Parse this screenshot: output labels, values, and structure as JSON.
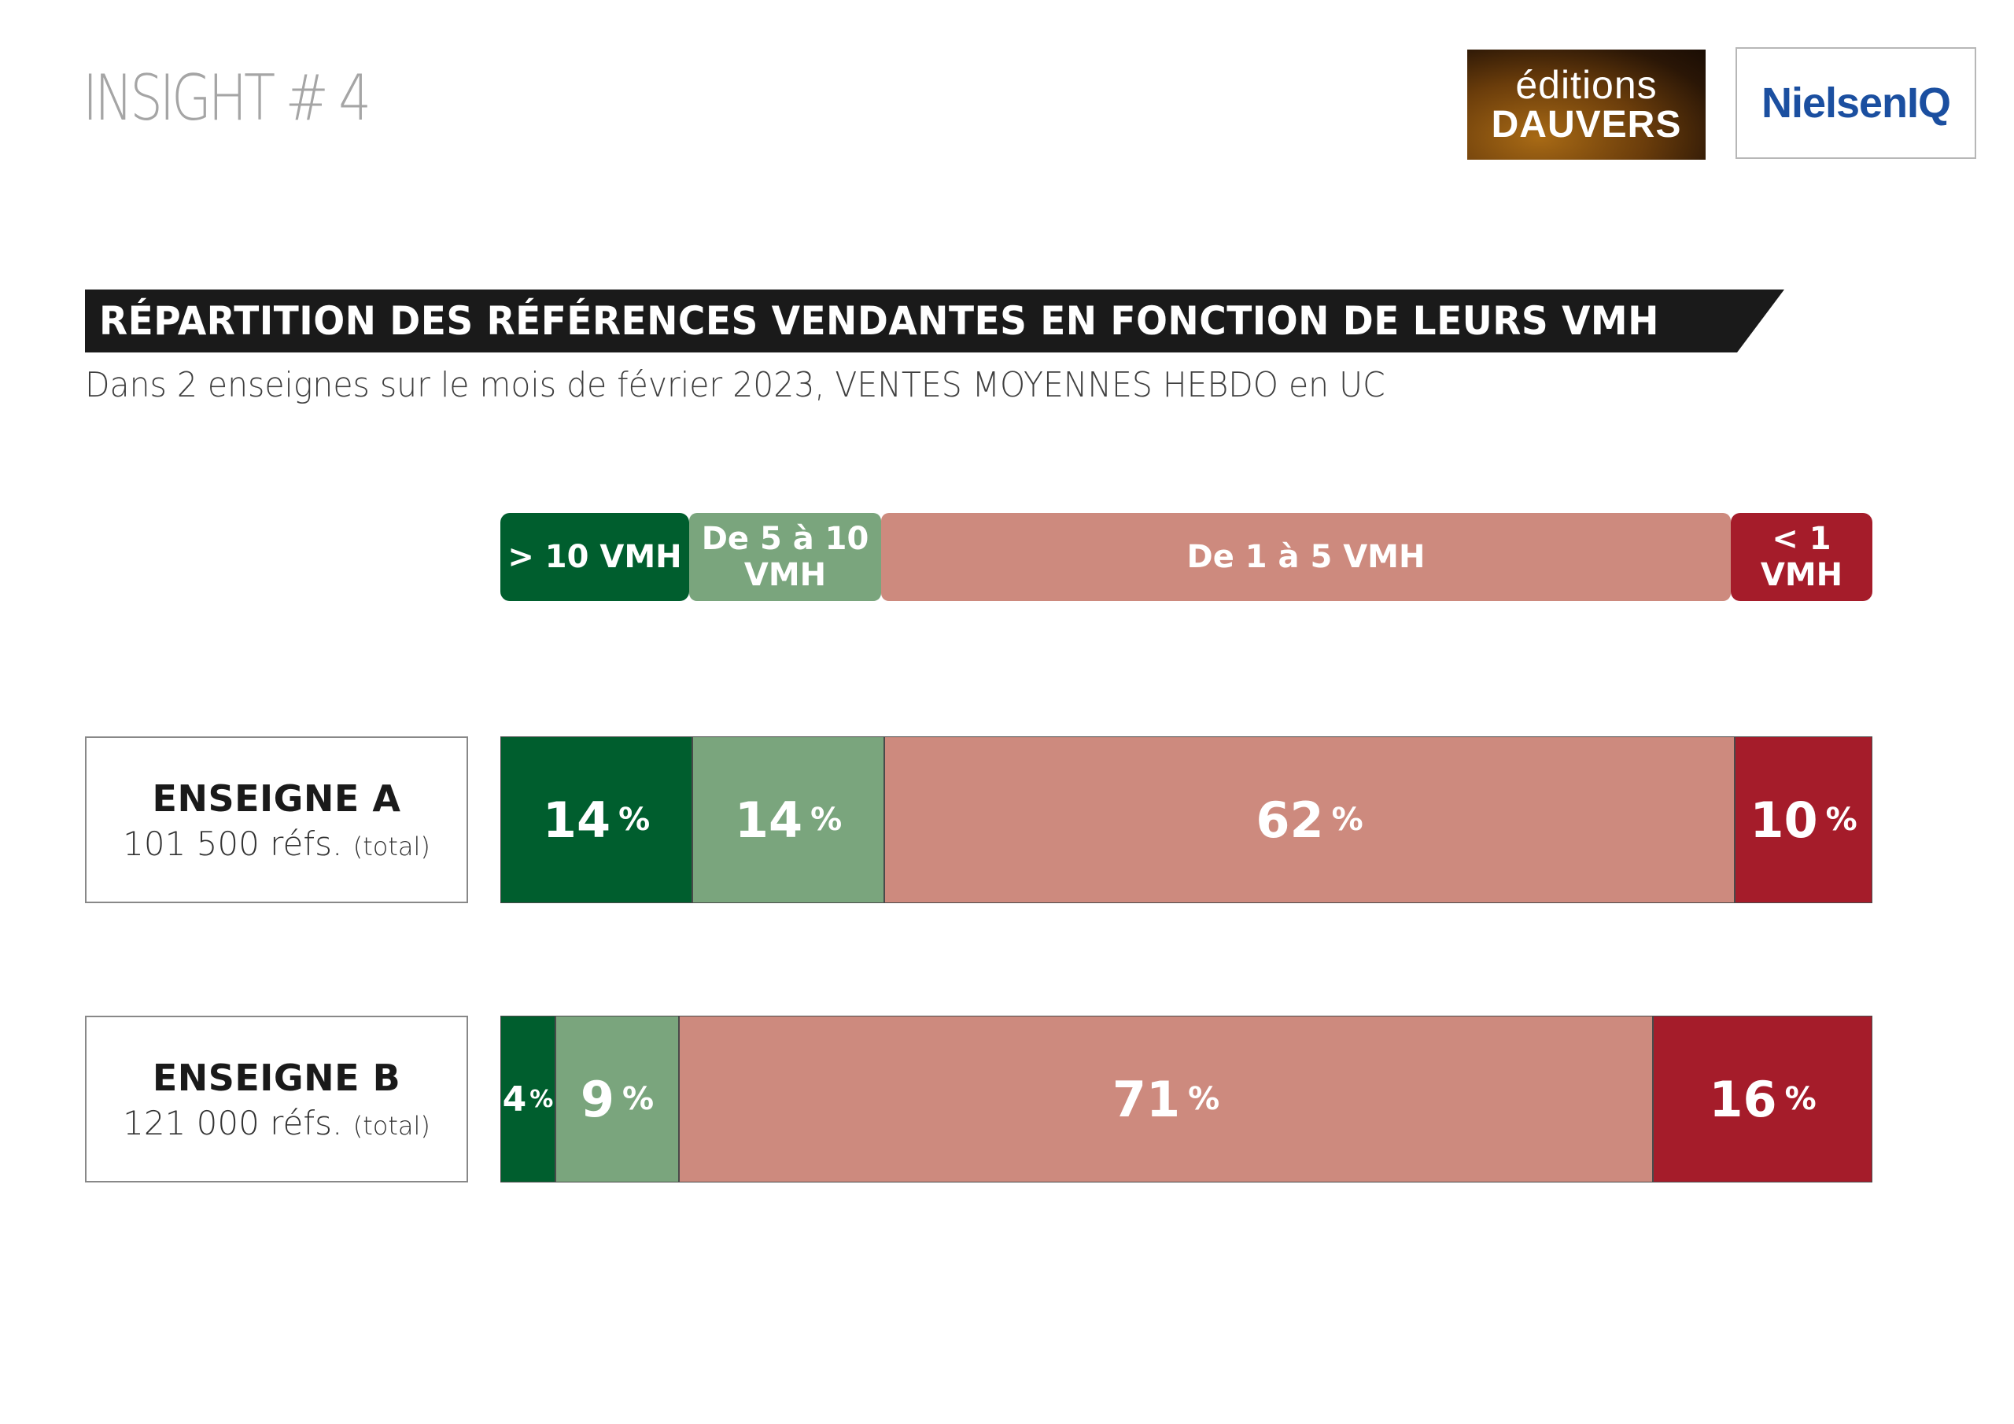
{
  "header": {
    "insight": "INSIGHT # 4",
    "logo_dauvers_line1": "éditions",
    "logo_dauvers_line2": "DAUVERS",
    "logo_nielsen": "NielsenIQ"
  },
  "colors": {
    "gt10": "#005e2e",
    "5to10": "#7aa57d",
    "1to5": "#cd8a7e",
    "lt1": "#a51c2a",
    "banner": "#1a1a1a"
  },
  "chart_data": {
    "type": "bar",
    "orientation": "horizontal",
    "stacked": true,
    "normalized": true,
    "title": "RÉPARTITION DES RÉFÉRENCES VENDANTES EN FONCTION DE LEURS VMH",
    "subtitle": "Dans 2 enseignes sur le mois de février 2023, VENTES MOYENNES HEBDO en UC",
    "categories": [
      {
        "name": "ENSEIGNE A",
        "refs": "101 500 réfs.",
        "refs_suffix": "(total)"
      },
      {
        "name": "ENSEIGNE B",
        "refs": "121 000 réfs.",
        "refs_suffix": "(total)"
      }
    ],
    "series": [
      {
        "name": "> 10 VMH",
        "values": [
          14,
          4
        ],
        "color": "#005e2e"
      },
      {
        "name": "De 5 à 10 VMH",
        "values": [
          14,
          9
        ],
        "color": "#7aa57d"
      },
      {
        "name": "De 1 à 5 VMH",
        "values": [
          62,
          71
        ],
        "color": "#cd8a7e"
      },
      {
        "name": "< 1 VMH",
        "values": [
          10,
          16
        ],
        "color": "#a51c2a"
      }
    ],
    "value_unit": "%",
    "legend_placement": "top"
  }
}
